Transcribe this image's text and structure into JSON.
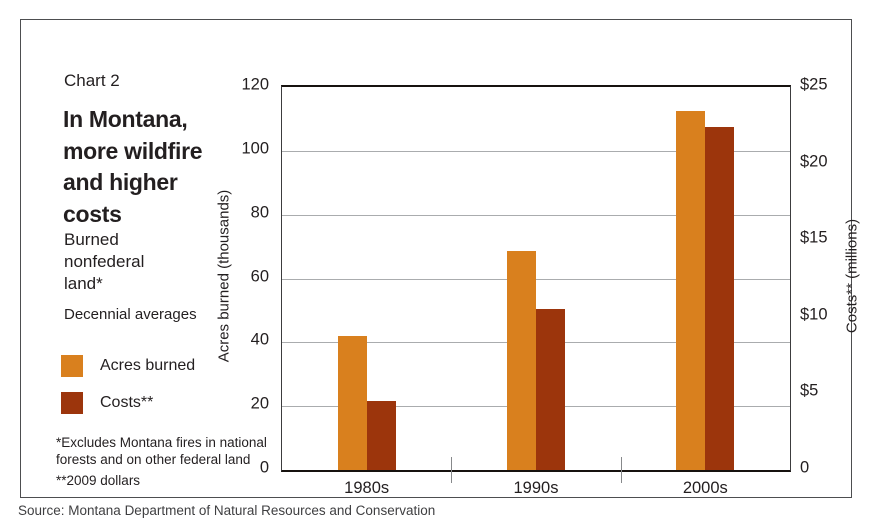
{
  "panel": {
    "chart_label": "Chart 2",
    "title_lines": [
      "In Montana,",
      "more wildfire",
      "and higher",
      "costs"
    ],
    "subtitle_lines": [
      "Burned",
      "nonfederal",
      "land*"
    ],
    "subtitle2": "Decennial averages",
    "legend": [
      {
        "label": "Acres burned",
        "color": "#D9801E"
      },
      {
        "label": "Costs**",
        "color": "#9C350C"
      }
    ],
    "footnote1_lines": [
      "*Excludes Montana fires in national",
      "forests and on other federal land"
    ],
    "footnote2": "**2009 dollars"
  },
  "source": "Source: Montana Department of Natural Resources and Conservation",
  "chart_data": {
    "type": "bar",
    "title": "In Montana, more wildfire and higher costs",
    "subtitle": "Burned nonfederal land* — Decennial averages",
    "categories": [
      "1980s",
      "1990s",
      "2000s"
    ],
    "series": [
      {
        "name": "Acres burned",
        "axis": "left",
        "color": "#D9801E",
        "values": [
          42,
          68.5,
          112.5
        ]
      },
      {
        "name": "Costs**",
        "axis": "right",
        "color": "#9C350C",
        "values": [
          4.5,
          10.5,
          22.4
        ]
      }
    ],
    "left_axis": {
      "label": "Acres burned (thousands)",
      "range": [
        0,
        120
      ],
      "ticks": [
        "0",
        "20",
        "40",
        "60",
        "80",
        "100",
        "120"
      ]
    },
    "right_axis": {
      "label": "Costs** (millions)",
      "range": [
        0,
        25
      ],
      "ticks": [
        "0",
        "$5",
        "$10",
        "$15",
        "$20",
        "$25"
      ]
    },
    "grid": "horizontal gridlines every 20 (left axis)",
    "legend_position": "left panel"
  }
}
